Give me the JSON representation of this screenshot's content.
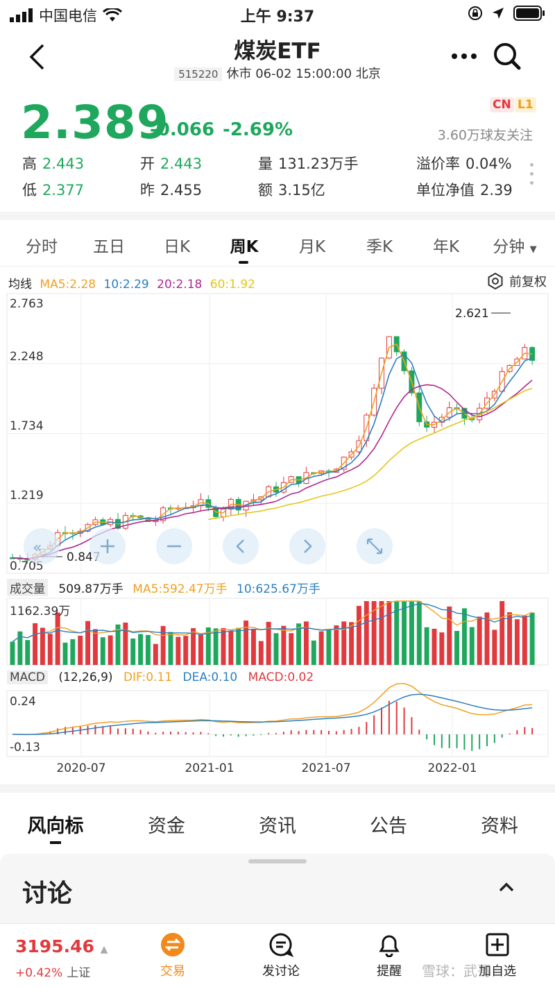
{
  "status": {
    "carrier": "中国电信",
    "time": "上午 9:37"
  },
  "header": {
    "title": "煤炭ETF",
    "code": "515220",
    "status_line": "休市 06-02 15:00:00 北京"
  },
  "quote": {
    "price": "2.389",
    "change": "-0.066",
    "change_pct": "-2.69%",
    "badge_cn": "CN",
    "badge_l1": "L1",
    "followers": "3.60万球友关注",
    "high_label": "高",
    "high": "2.443",
    "open_label": "开",
    "open": "2.443",
    "volume_label": "量",
    "volume": "131.23万手",
    "premium_label": "溢价率",
    "premium": "0.04%",
    "low_label": "低",
    "low": "2.377",
    "prev_label": "昨",
    "prev": "2.455",
    "amount_label": "额",
    "amount": "3.15亿",
    "nav_label": "单位净值",
    "nav": "2.39"
  },
  "tabs": [
    "分时",
    "五日",
    "日K",
    "周K",
    "月K",
    "季K",
    "年K",
    "分钟"
  ],
  "active_tab": 3,
  "ma_legend": {
    "label": "均线",
    "ma5": "MA5:2.28",
    "ma10": "10:2.29",
    "ma20": "20:2.18",
    "ma60": "60:1.92",
    "fuquan": "前复权"
  },
  "colors": {
    "up": "#e0393e",
    "down": "#1fa85d",
    "ma5": "#f0a020",
    "ma10": "#2a7fc1",
    "ma20": "#b0278f",
    "ma60": "#e6c51a"
  },
  "chart_data": {
    "type": "candlestick",
    "price_axis": [
      "2.763",
      "2.248",
      "1.734",
      "1.219",
      "0.705"
    ],
    "ylim": [
      0.705,
      2.763
    ],
    "max_marker": "2.621",
    "min_marker": "0.847",
    "x_ticks": [
      "2020-07",
      "2021-01",
      "2021-07",
      "2022-01"
    ],
    "ma5_close": [
      0.82,
      0.83,
      0.84,
      0.85,
      0.87,
      0.93,
      1.0,
      1.04,
      1.03,
      1.04,
      1.05,
      1.06,
      1.06,
      1.08,
      1.07,
      1.1,
      1.12,
      1.1,
      1.09,
      1.1,
      1.15,
      1.18,
      1.19,
      1.21,
      1.22,
      1.21,
      1.17,
      1.16,
      1.2,
      1.23,
      1.21,
      1.24,
      1.25,
      1.27,
      1.31,
      1.33,
      1.36,
      1.39,
      1.4,
      1.42,
      1.44,
      1.46,
      1.47,
      1.5,
      1.55,
      1.63,
      1.72,
      1.85,
      2.05,
      2.3,
      2.48,
      2.35,
      2.2,
      2.0,
      1.85,
      1.78,
      1.82,
      1.86,
      1.9,
      1.88,
      1.85,
      1.83,
      1.9,
      2.0,
      2.08,
      2.15,
      2.22,
      2.28,
      2.33,
      2.28
    ],
    "volume": {
      "legend": "509.87万手",
      "ma5": "MA5:592.47万手",
      "ma10": "10:625.67万手",
      "max": "1162.39万"
    },
    "macd": {
      "params": "(12,26,9)",
      "dif": "DIF:0.11",
      "dea": "DEA:0.10",
      "macd": "MACD:0.02",
      "top": "0.24",
      "bottom": "-0.13"
    }
  },
  "volume_label": "成交量",
  "macd_label": "MACD",
  "bottom_tabs": [
    "风向标",
    "资金",
    "资讯",
    "公告",
    "资料"
  ],
  "discuss": {
    "title": "讨论"
  },
  "tabbar": {
    "index_value": "3195.46",
    "index_change": "+0.42%",
    "index_name": "上证",
    "items": [
      "交易",
      "发讨论",
      "提醒",
      "加自选"
    ],
    "watermark": "雪球：武哥"
  }
}
